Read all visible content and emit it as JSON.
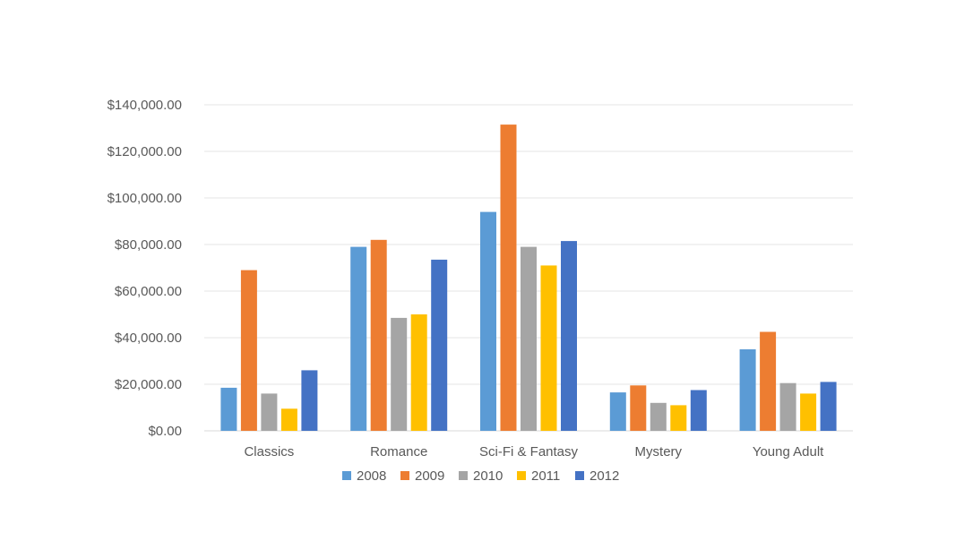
{
  "chart_data": {
    "type": "bar",
    "title": "",
    "xlabel": "",
    "ylabel": "",
    "categories": [
      "Classics",
      "Romance",
      "Sci-Fi & Fantasy",
      "Mystery",
      "Young Adult"
    ],
    "series": [
      {
        "name": "2008",
        "color": "#5b9bd5",
        "values": [
          18500,
          79000,
          94000,
          16500,
          35000
        ]
      },
      {
        "name": "2009",
        "color": "#ed7d31",
        "values": [
          69000,
          82000,
          131500,
          19500,
          42500
        ]
      },
      {
        "name": "2010",
        "color": "#a5a5a5",
        "values": [
          16000,
          48500,
          79000,
          12000,
          20500
        ]
      },
      {
        "name": "2011",
        "color": "#ffc000",
        "values": [
          9500,
          50000,
          71000,
          11000,
          16000
        ]
      },
      {
        "name": "2012",
        "color": "#4472c4",
        "values": [
          26000,
          73500,
          81500,
          17500,
          21000
        ]
      }
    ],
    "ylim": [
      0,
      140000
    ],
    "yticks": [
      0,
      20000,
      40000,
      60000,
      80000,
      100000,
      120000,
      140000
    ],
    "ytick_labels": [
      "$0.00",
      "$20,000.00",
      "$40,000.00",
      "$60,000.00",
      "$80,000.00",
      "$100,000.00",
      "$120,000.00",
      "$140,000.00"
    ],
    "grid": true,
    "legend_position": "bottom"
  }
}
